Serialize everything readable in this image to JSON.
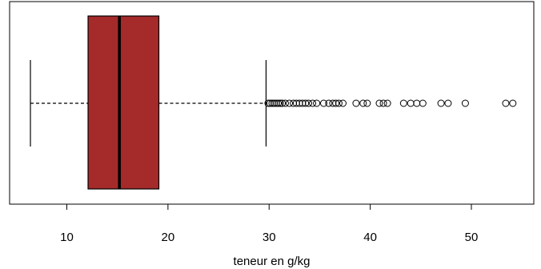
{
  "chart_data": {
    "type": "boxplot",
    "orientation": "horizontal",
    "title": "",
    "xlabel": "teneur en g/kg",
    "ylabel": "",
    "xticks": [
      10,
      20,
      30,
      40,
      50
    ],
    "xlim": [
      4.0,
      55.0
    ],
    "grid": false,
    "box": {
      "whisker_low": 6.4,
      "q1": 12.1,
      "median": 15.2,
      "q3": 19.1,
      "whisker_high": 29.7
    },
    "outliers": [
      29.9,
      30.1,
      30.3,
      30.5,
      30.7,
      30.9,
      31.1,
      31.3,
      31.6,
      32.0,
      32.4,
      32.7,
      33.0,
      33.3,
      33.6,
      33.9,
      34.3,
      34.7,
      35.4,
      35.9,
      36.3,
      36.6,
      36.9,
      37.3,
      38.6,
      39.3,
      39.7,
      40.9,
      41.3,
      41.7,
      43.3,
      44.0,
      44.6,
      45.2,
      47.0,
      47.7,
      49.4,
      53.4,
      54.1
    ],
    "colors": {
      "box_fill": "#A52A2A",
      "stroke": "#000000"
    }
  }
}
